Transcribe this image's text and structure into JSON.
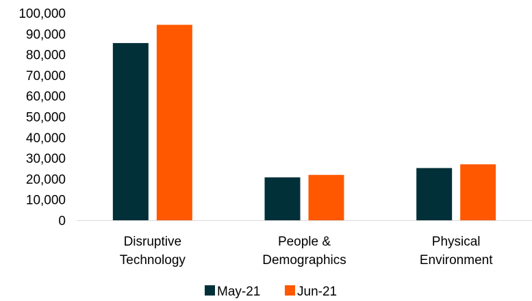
{
  "chart_data": {
    "type": "bar",
    "categories": [
      [
        "Disruptive",
        "Technology"
      ],
      [
        "People &",
        "Demographics"
      ],
      [
        "Physical",
        "Environment"
      ]
    ],
    "series": [
      {
        "name": "May-21",
        "color": "#023038",
        "values": [
          85500,
          20700,
          25200
        ]
      },
      {
        "name": "Jun-21",
        "color": "#FF5800",
        "values": [
          94300,
          21900,
          27000
        ]
      }
    ],
    "y_ticks": [
      "0",
      "10,000",
      "20,000",
      "30,000",
      "40,000",
      "50,000",
      "60,000",
      "70,000",
      "80,000",
      "90,000",
      "100,000"
    ],
    "ylim": [
      0,
      100000
    ],
    "grid": false,
    "legend_position": "bottom"
  }
}
